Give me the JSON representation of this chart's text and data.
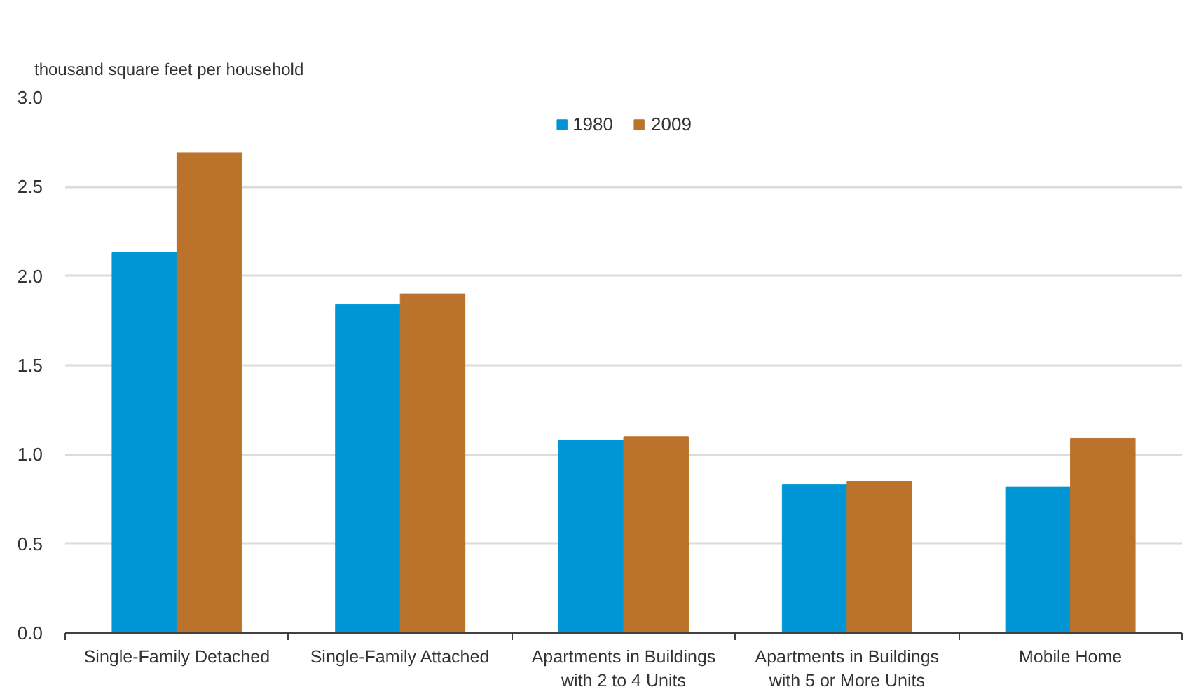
{
  "chart_data": {
    "type": "bar",
    "ylabel": "thousand square feet per household",
    "categories": [
      "Single-Family Detached",
      "Single-Family Attached",
      "Apartments in Buildings\nwith 2 to 4 Units",
      "Apartments in Buildings\nwith 5 or More Units",
      "Mobile Home"
    ],
    "series": [
      {
        "name": "1980",
        "color": "#0096d6",
        "values": [
          2.13,
          1.84,
          1.08,
          0.83,
          0.82
        ]
      },
      {
        "name": "2009",
        "color": "#bb732c",
        "values": [
          2.69,
          1.9,
          1.1,
          0.85,
          1.09
        ]
      }
    ],
    "ylim": [
      0,
      3
    ],
    "yticks": [
      {
        "value": 0,
        "label": "0.0"
      },
      0.5,
      {
        "value": 1,
        "label": "1.0"
      },
      1.5,
      {
        "value": 2,
        "label": "2.0"
      },
      2.5,
      {
        "value": 3,
        "label": "3.0"
      }
    ],
    "grid": "y",
    "legend": "top"
  }
}
